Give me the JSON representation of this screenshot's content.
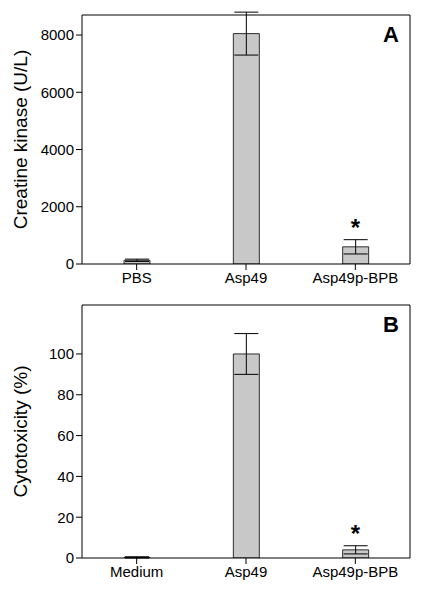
{
  "chart_data": [
    {
      "type": "bar",
      "ylabel": "Creatine kinase (U/L)",
      "categories": [
        "PBS",
        "Asp49",
        "Asp49p-BPB"
      ],
      "values": [
        130,
        8050,
        600
      ],
      "errors": [
        40,
        750,
        250
      ],
      "color": "#c8c8c8",
      "ylim": [
        0,
        8700
      ],
      "yticks": [
        0,
        2000,
        4000,
        6000,
        8000
      ],
      "grid": false,
      "annotations": [
        {
          "text": "A",
          "position": "top-right"
        },
        {
          "text": "*",
          "category": "Asp49p-BPB"
        }
      ]
    },
    {
      "type": "bar",
      "ylabel": "Cytotoxicity (%)",
      "categories": [
        "Medium",
        "Asp49",
        "Asp49p-BPB"
      ],
      "values": [
        0.3,
        100,
        4
      ],
      "errors": [
        0.3,
        10,
        2
      ],
      "color": "#c8c8c8",
      "ylim": [
        0,
        124
      ],
      "yticks": [
        0,
        20,
        40,
        60,
        80,
        100
      ],
      "grid": false,
      "annotations": [
        {
          "text": "B",
          "position": "top-right"
        },
        {
          "text": "*",
          "category": "Asp49p-BPB"
        }
      ]
    }
  ]
}
